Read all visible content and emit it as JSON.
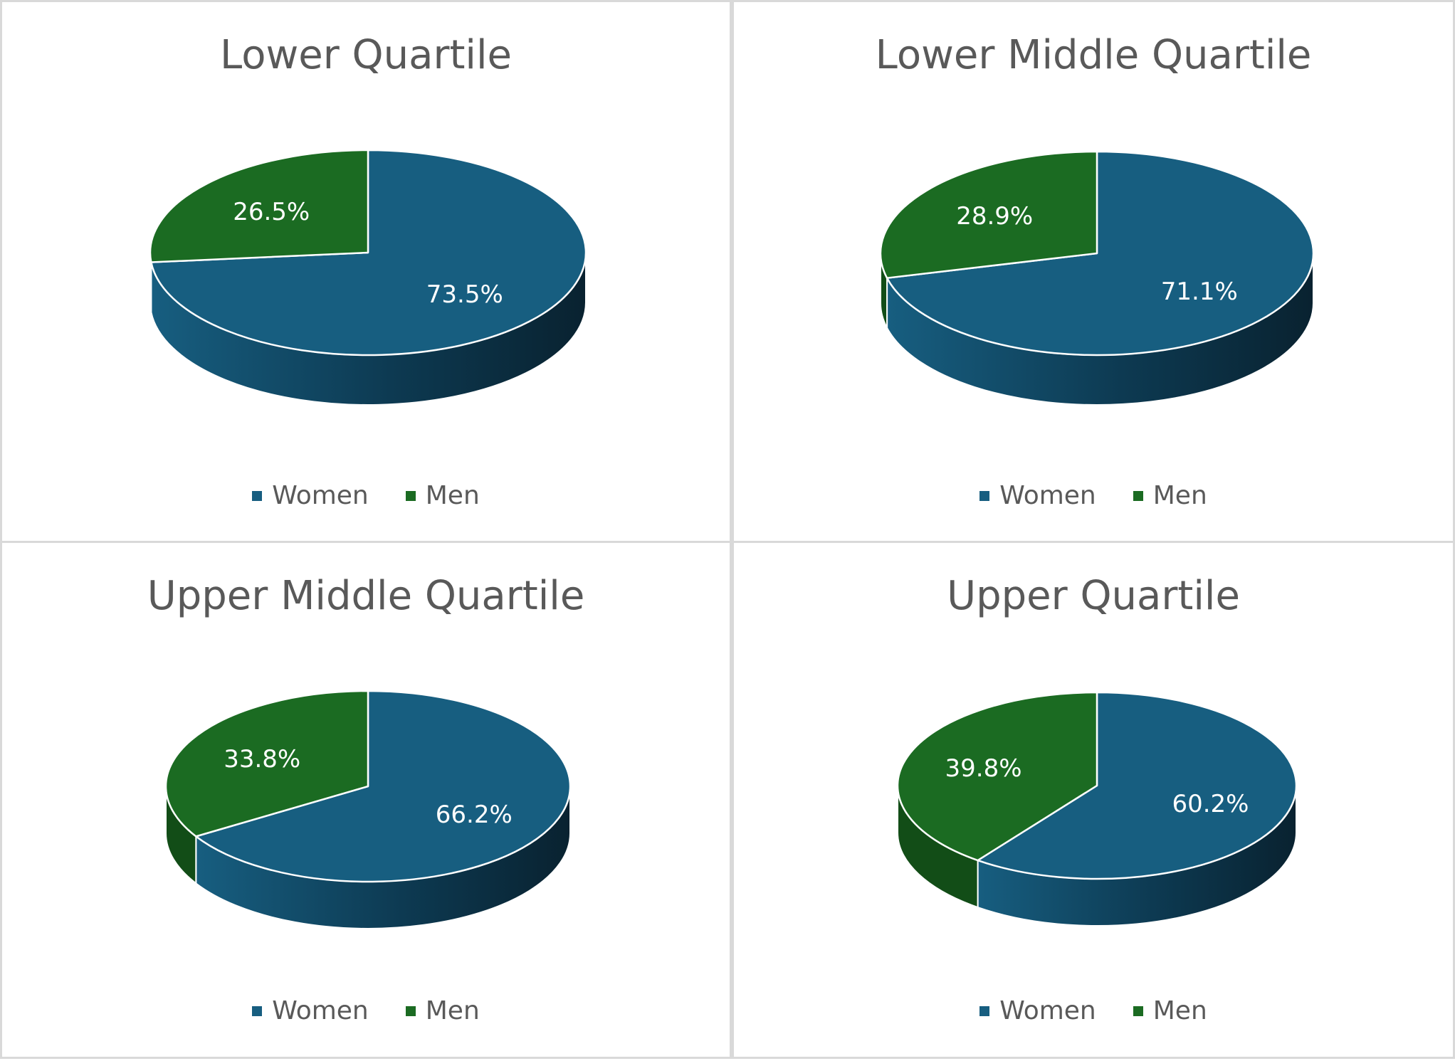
{
  "colors": {
    "women": "#175e80",
    "women_side_light": "#175e80",
    "women_side_dark": "#092230",
    "men": "#1b6b22",
    "men_side": "#124d17",
    "label": "#ffffff",
    "text": "#595959",
    "border": "#d9d9d9"
  },
  "legend": [
    {
      "key": "women",
      "label": "Women"
    },
    {
      "key": "men",
      "label": "Men"
    }
  ],
  "chart_data": [
    {
      "type": "pie",
      "title": "Lower Quartile",
      "labels": [
        "Women",
        "Men"
      ],
      "values": [
        73.5,
        26.5
      ],
      "data_labels": [
        "73.5%",
        "26.5%"
      ]
    },
    {
      "type": "pie",
      "title": "Lower Middle Quartile",
      "labels": [
        "Women",
        "Men"
      ],
      "values": [
        71.1,
        28.9
      ],
      "data_labels": [
        "71.1%",
        "28.9%"
      ]
    },
    {
      "type": "pie",
      "title": "Upper Middle Quartile",
      "labels": [
        "Women",
        "Men"
      ],
      "values": [
        66.2,
        33.8
      ],
      "data_labels": [
        "66.2%",
        "33.8%"
      ]
    },
    {
      "type": "pie",
      "title": "Upper Quartile",
      "labels": [
        "Women",
        "Men"
      ],
      "values": [
        60.2,
        39.8
      ],
      "data_labels": [
        "60.2%",
        "39.8%"
      ]
    }
  ]
}
